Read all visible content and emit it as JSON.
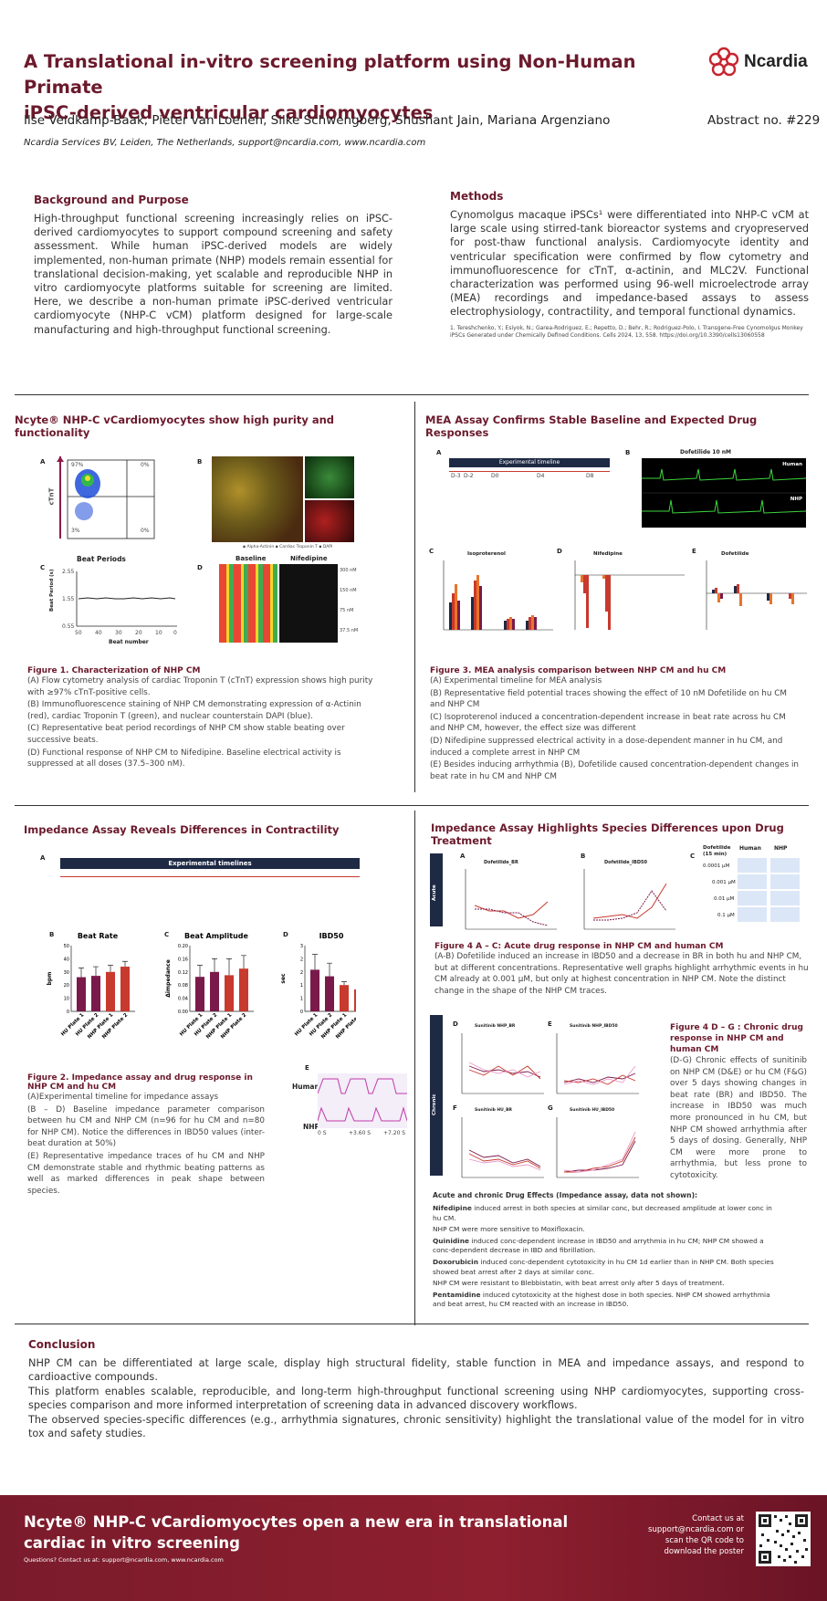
{
  "header": {
    "title_line1": "A Translational in-vitro screening platform using Non-Human Primate",
    "title_line2": "iPSC-derived ventricular cardiomyocytes",
    "authors": "Ilse Veldkamp-Baak, Pieter van Loenen, Silke Schwengberg, Shushant Jain, Mariana Argenziano",
    "affiliation": "Ncardia Services BV, Leiden, The Netherlands, support@ncardia.com, www.ncardia.com",
    "abstract_no": "Abstract no. #229",
    "logo_text": "Ncardia"
  },
  "background": {
    "heading": "Background and Purpose",
    "text": "High-throughput functional screening increasingly relies on iPSC-derived cardiomyocytes to support compound screening and safety assessment. While human iPSC-derived models are widely implemented, non-human primate (NHP) models remain essential for translational decision-making, yet scalable and reproducible NHP in vitro cardiomyocyte platforms suitable for screening are limited. Here, we describe a non-human primate iPSC-derived ventricular cardiomyocyte (NHP-C vCM) platform designed for large-scale manufacturing and high-throughput functional screening."
  },
  "methods": {
    "heading": "Methods",
    "text": "Cynomolgus macaque iPSCs¹ were differentiated into NHP-C vCM at large scale using stirred-tank bioreactor systems and cryopreserved for post-thaw functional analysis. Cardiomyocyte identity and ventricular specification were confirmed by flow cytometry and immunofluorescence for cTnT, α-actinin, and MLC2V. Functional characterization was performed using 96-well microelectrode array (MEA) recordings and impedance-based assays to assess electrophysiology, contractility, and temporal functional dynamics.",
    "reference": "1. Tereshchenko, Y.; Esiyok, N.; Garea-Rodriguez, E.; Repetto, D.; Behr, R.; Rodriguez-Polo, I. Transgene-Free Cynomolgus Monkey iPSCs Generated under Chemically Defined Conditions. Cells 2024, 13, 558. https://doi.org/10.3390/cells13060558"
  },
  "section1": {
    "heading": "Ncyte® NHP-C vCardiomyocytes show high purity and functionality",
    "panel_a": {
      "letter": "A",
      "ylabel": "cTnT",
      "q1": "97%",
      "q2": "0%",
      "q3": "3%",
      "q4": "0%"
    },
    "panel_b": {
      "letter": "B",
      "legend": "▪ Alpha-Actinin  ▪ Cardiac Troponin T  ▪ DAPI"
    },
    "panel_c": {
      "letter": "C",
      "title": "Beat Periods",
      "ylabel": "Beat Period (s)",
      "xlabel": "Beat number",
      "yticks": [
        "2.55",
        "1.55",
        "0.55"
      ],
      "xticks": [
        "50",
        "40",
        "30",
        "20",
        "10",
        "0"
      ]
    },
    "panel_d": {
      "letter": "D",
      "col1": "Baseline",
      "col2": "Nifedipine",
      "rows": [
        "300 nM",
        "150 nM",
        "75 nM",
        "37.5 nM"
      ]
    },
    "caption_title": "Figure 1. Characterization of NHP CM",
    "captions": [
      "(A) Flow cytometry analysis of cardiac Troponin T (cTnT) expression shows high purity with ≥97% cTnT-positive cells.",
      "(B) Immunofluorescence staining of NHP CM demonstrating expression of α-Actinin (red), cardiac Troponin T (green), and nuclear counterstain DAPI (blue).",
      "(C) Representative beat period recordings of NHP CM show stable beating over successive beats.",
      "(D) Functional response of NHP CM to Nifedipine. Baseline electrical activity is suppressed at all doses (37.5–300 nM)."
    ]
  },
  "section2": {
    "heading": "MEA Assay Confirms Stable Baseline and Expected Drug Responses",
    "timeline_title": "Experimental timeline",
    "timeline_days": [
      "D-3",
      "D-2",
      "D0",
      "D4",
      "D8"
    ],
    "panel_b_title": "Dofetilide 10 nM",
    "panel_b_human": "Human",
    "panel_b_nhp": "NHP",
    "chart_titles": [
      "Isoproterenol",
      "Nifedipine",
      "Dofetilide"
    ],
    "caption_title": "Figure 3. MEA analysis comparison between NHP CM and hu CM",
    "captions": [
      "(A) Experimental timeline for MEA analysis",
      "(B) Representative field potential traces showing the effect of 10 nM Dofetilide on hu CM and NHP CM",
      "(C) Isoproterenol induced a concentration-dependent increase in beat rate across hu CM and NHP CM, however, the effect size was different",
      "(D) Nifedipine suppressed electrical activity in a dose-dependent manner in hu CM, and induced a complete arrest in NHP CM",
      "(E) Besides inducing arrhythmia (B), Dofetilide caused concentration-dependent changes in beat rate in hu CM and NHP CM"
    ]
  },
  "section3": {
    "heading": "Impedance Assay Reveals Differences in Contractility",
    "timeline_title": "Experimental timelines",
    "chart_titles": [
      "Beat Rate",
      "Beat Amplitude",
      "IBD50"
    ],
    "trace_labels": [
      "Human",
      "NHP"
    ],
    "trace_times": [
      "0 S",
      "+3.60 S",
      "+7.20 S"
    ],
    "caption_title": "Figure 2. Impedance assay and drug response in NHP CM and hu CM",
    "captions": [
      "(A)Experimental timeline for impedance assays",
      "(B – D) Baseline impedance parameter comparison between hu CM and NHP CM (n=96 for hu CM and n=80 for NHP CM). Notice the differences in IBD50 values (inter-beat duration at 50%)",
      "(E) Representative impedance traces of hu CM and NHP CM demonstrate stable and rhythmic beating patterns as well as marked differences in peak shape between species."
    ]
  },
  "section4": {
    "heading": "Impedance Assay Highlights Species Differences upon Drug Treatment",
    "acute_label": "Acute",
    "chronic_label": "Chronic",
    "chart_a_title": "Dofetilide_BR",
    "chart_b_title": "Dofetilide_IBD50",
    "panel_c_head": [
      "Dofetilide (15 min)",
      "Human",
      "NHP"
    ],
    "panel_c_rows": [
      "0.0001 μM",
      "0.001 μM",
      "0.01 μM",
      "0.1 μM"
    ],
    "chronic_titles": [
      "Sunitinib NHP_BR",
      "Sunitinib NHP_IBD50",
      "Sunitinib HU_BR",
      "Sunitinib HU_IBD50"
    ],
    "caption4a_title": "Figure 4 A – C: Acute drug response in NHP CM and human CM",
    "caption4a": "(A-B) Dofetilide induced an increase in IBD50 and a decrease in BR in both hu and NHP CM, but at different concentrations. Representative well graphs highlight arrhythmic events in hu CM already at 0.001 μM,  but only at highest concentration in NHP CM. Note the distinct change in the shape of the NHP CM traces.",
    "caption4d_title": "Figure 4 D – G : Chronic drug response in  NHP CM and human CM",
    "caption4d": "(D-G) Chronic effects of sunitinib on NHP CM (D&E) or hu CM (F&G) over 5 days showing changes in beat rate (BR) and IBD50. The increase in IBD50 was much more pronounced in hu CM, but NHP CM showed arrhythmia after 5 days of dosing. Generally, NHP CM were more prone to arrhythmia, but less prone to cytotoxicity.",
    "effects_title": "Acute and chronic Drug Effects (Impedance assay, data not shown):",
    "effects": [
      {
        "drug": "Nifedipine",
        "text": " induced arrest in both species at similar conc, but decreased amplitude at lower conc in hu CM."
      },
      {
        "drug": "",
        "text": "NHP CM were more sensitive to Moxifloxacin."
      },
      {
        "drug": "Quinidine",
        "text": " induced conc-dependent increase in IBD50 and arrythmia in hu CM; NHP CM showed a conc-dependent decrease in IBD and fibrillation."
      },
      {
        "drug": "Doxorubicin",
        "text": " induced conc-dependent cytotoxicity in hu CM 1d earlier than in NHP CM. Both species showed beat arrest after 2 days at similar conc."
      },
      {
        "drug": "",
        "text": "NHP CM were resistant to Blebbistatin, with beat arrest only after 5 days of treatment."
      },
      {
        "drug": "Pentamidine",
        "text": " induced cytotoxicity at the highest dose in both species. NHP CM showed arrhythmia and beat arrest, hu CM reacted with an increase in IBD50."
      }
    ]
  },
  "conclusion": {
    "heading": "Conclusion",
    "p1": "NHP CM can be differentiated at large scale, display high structural fidelity, stable function in MEA and impedance assays, and respond to cardioactive compounds.",
    "p2": "This platform enables scalable, reproducible, and long-term high-throughput functional screening using NHP cardiomyocytes, supporting cross-species comparison and more informed interpretation of screening data in advanced discovery workflows.",
    "p3": "The observed species-specific differences (e.g., arrhythmia signatures, chronic sensitivity) highlight the translational value of the model for in vitro tox and safety studies."
  },
  "footer": {
    "title": "Ncyte® NHP-C vCardiomyocytes open a new era in translational cardiac in vitro screening",
    "questions": "Questions? Contact us at: support@ncardia.com, www.ncardia.com",
    "contact": "Contact us at support@ncardia.com or scan the QR code to download the poster"
  },
  "chart_data": [
    {
      "type": "bar",
      "title": "Beat Rate",
      "ylabel": "bpm",
      "categories": [
        "HU Plate 1",
        "HU Plate 2",
        "NHP Plate 1",
        "NHP Plate 2"
      ],
      "values": [
        26,
        27,
        30,
        34
      ],
      "errors": [
        7,
        7,
        5,
        4
      ],
      "ylim": [
        0,
        50
      ],
      "colors": [
        "#7a1a4a",
        "#7a1a4a",
        "#c8392e",
        "#c8392e"
      ]
    },
    {
      "type": "bar",
      "title": "Beat Amplitude",
      "ylabel": "Δimpedance",
      "categories": [
        "HU Plate 1",
        "HU Plate 2",
        "NHP Plate 1",
        "NHP Plate 2"
      ],
      "values": [
        0.105,
        0.12,
        0.11,
        0.13
      ],
      "errors": [
        0.035,
        0.04,
        0.05,
        0.04
      ],
      "ylim": [
        0,
        0.2
      ],
      "colors": [
        "#7a1a4a",
        "#7a1a4a",
        "#c8392e",
        "#c8392e"
      ]
    },
    {
      "type": "bar",
      "title": "IBD50",
      "ylabel": "sec",
      "categories": [
        "HU Plate 1",
        "HU Plate 2",
        "NHP Plate 1",
        "NHP Plate 2"
      ],
      "values": [
        1.9,
        1.6,
        1.2,
        1.0
      ],
      "errors": [
        0.7,
        0.6,
        0.15,
        0.12
      ],
      "ylim": [
        0,
        3
      ],
      "colors": [
        "#7a1a4a",
        "#7a1a4a",
        "#c8392e",
        "#c8392e"
      ]
    }
  ],
  "colors": {
    "brand": "#6b1a2c",
    "hu": "#7a1a4a",
    "nhp": "#c8392e",
    "footer": "#7a1b2b"
  }
}
